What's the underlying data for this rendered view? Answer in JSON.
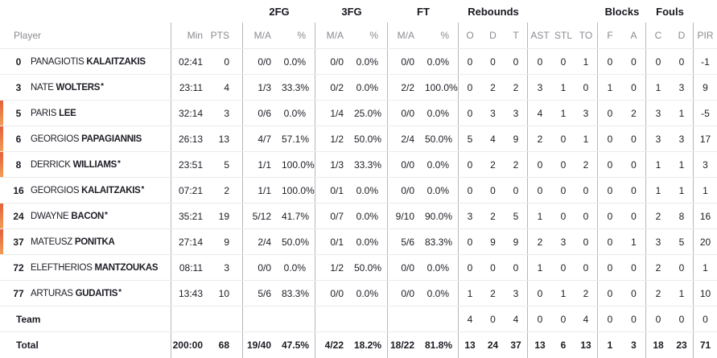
{
  "colors": {
    "text": "#1c1c24",
    "muted_header": "#8a8a92",
    "divider_line": "#b7b7bc",
    "row_line": "#ebebed",
    "oncourt_marker_top": "#e4603c",
    "oncourt_marker_bottom": "#f29c55"
  },
  "table": {
    "star": "*",
    "groups": [
      "2FG",
      "3FG",
      "FT",
      "Rebounds",
      "Blocks",
      "Fouls"
    ],
    "columns": [
      "Player",
      "Min",
      "PTS",
      "M/A",
      "%",
      "M/A",
      "%",
      "M/A",
      "%",
      "O",
      "D",
      "T",
      "AST",
      "STL",
      "TO",
      "F",
      "A",
      "C",
      "D",
      "PIR"
    ],
    "rows": [
      {
        "num": "0",
        "first": "PANAGIOTIS",
        "last": "KALAITZAKIS",
        "starter": false,
        "oncourt": false,
        "min": "02:41",
        "pts": "0",
        "fg2_ma": "0/0",
        "fg2_pct": "0.0%",
        "fg3_ma": "0/0",
        "fg3_pct": "0.0%",
        "ft_ma": "0/0",
        "ft_pct": "0.0%",
        "reb_o": "0",
        "reb_d": "0",
        "reb_t": "0",
        "ast": "0",
        "stl": "0",
        "to": "1",
        "blk_f": "0",
        "blk_a": "0",
        "foul_c": "0",
        "foul_d": "0",
        "pir": "-1"
      },
      {
        "num": "3",
        "first": "NATE",
        "last": "WOLTERS",
        "starter": true,
        "oncourt": false,
        "min": "23:11",
        "pts": "4",
        "fg2_ma": "1/3",
        "fg2_pct": "33.3%",
        "fg3_ma": "0/2",
        "fg3_pct": "0.0%",
        "ft_ma": "2/2",
        "ft_pct": "100.0%",
        "reb_o": "0",
        "reb_d": "2",
        "reb_t": "2",
        "ast": "3",
        "stl": "1",
        "to": "0",
        "blk_f": "1",
        "blk_a": "0",
        "foul_c": "1",
        "foul_d": "3",
        "pir": "9"
      },
      {
        "num": "5",
        "first": "PARIS",
        "last": "LEE",
        "starter": false,
        "oncourt": true,
        "min": "32:14",
        "pts": "3",
        "fg2_ma": "0/6",
        "fg2_pct": "0.0%",
        "fg3_ma": "1/4",
        "fg3_pct": "25.0%",
        "ft_ma": "0/0",
        "ft_pct": "0.0%",
        "reb_o": "0",
        "reb_d": "3",
        "reb_t": "3",
        "ast": "4",
        "stl": "1",
        "to": "3",
        "blk_f": "0",
        "blk_a": "2",
        "foul_c": "3",
        "foul_d": "1",
        "pir": "-5"
      },
      {
        "num": "6",
        "first": "GEORGIOS",
        "last": "PAPAGIANNIS",
        "starter": false,
        "oncourt": true,
        "min": "26:13",
        "pts": "13",
        "fg2_ma": "4/7",
        "fg2_pct": "57.1%",
        "fg3_ma": "1/2",
        "fg3_pct": "50.0%",
        "ft_ma": "2/4",
        "ft_pct": "50.0%",
        "reb_o": "5",
        "reb_d": "4",
        "reb_t": "9",
        "ast": "2",
        "stl": "0",
        "to": "1",
        "blk_f": "0",
        "blk_a": "0",
        "foul_c": "3",
        "foul_d": "3",
        "pir": "17"
      },
      {
        "num": "8",
        "first": "DERRICK",
        "last": "WILLIAMS",
        "starter": true,
        "oncourt": true,
        "min": "23:51",
        "pts": "5",
        "fg2_ma": "1/1",
        "fg2_pct": "100.0%",
        "fg3_ma": "1/3",
        "fg3_pct": "33.3%",
        "ft_ma": "0/0",
        "ft_pct": "0.0%",
        "reb_o": "0",
        "reb_d": "2",
        "reb_t": "2",
        "ast": "0",
        "stl": "0",
        "to": "2",
        "blk_f": "0",
        "blk_a": "0",
        "foul_c": "1",
        "foul_d": "1",
        "pir": "3"
      },
      {
        "num": "16",
        "first": "GEORGIOS",
        "last": "KALAITZAKIS",
        "starter": true,
        "oncourt": false,
        "min": "07:21",
        "pts": "2",
        "fg2_ma": "1/1",
        "fg2_pct": "100.0%",
        "fg3_ma": "0/1",
        "fg3_pct": "0.0%",
        "ft_ma": "0/0",
        "ft_pct": "0.0%",
        "reb_o": "0",
        "reb_d": "0",
        "reb_t": "0",
        "ast": "0",
        "stl": "0",
        "to": "0",
        "blk_f": "0",
        "blk_a": "0",
        "foul_c": "1",
        "foul_d": "1",
        "pir": "1"
      },
      {
        "num": "24",
        "first": "DWAYNE",
        "last": "BACON",
        "starter": true,
        "oncourt": true,
        "min": "35:21",
        "pts": "19",
        "fg2_ma": "5/12",
        "fg2_pct": "41.7%",
        "fg3_ma": "0/7",
        "fg3_pct": "0.0%",
        "ft_ma": "9/10",
        "ft_pct": "90.0%",
        "reb_o": "3",
        "reb_d": "2",
        "reb_t": "5",
        "ast": "1",
        "stl": "0",
        "to": "0",
        "blk_f": "0",
        "blk_a": "0",
        "foul_c": "2",
        "foul_d": "8",
        "pir": "16"
      },
      {
        "num": "37",
        "first": "MATEUSZ",
        "last": "PONITKA",
        "starter": false,
        "oncourt": true,
        "min": "27:14",
        "pts": "9",
        "fg2_ma": "2/4",
        "fg2_pct": "50.0%",
        "fg3_ma": "0/1",
        "fg3_pct": "0.0%",
        "ft_ma": "5/6",
        "ft_pct": "83.3%",
        "reb_o": "0",
        "reb_d": "9",
        "reb_t": "9",
        "ast": "2",
        "stl": "3",
        "to": "0",
        "blk_f": "0",
        "blk_a": "1",
        "foul_c": "3",
        "foul_d": "5",
        "pir": "20"
      },
      {
        "num": "72",
        "first": "ELEFTHERIOS",
        "last": "MANTZOUKAS",
        "starter": false,
        "oncourt": false,
        "min": "08:11",
        "pts": "3",
        "fg2_ma": "0/0",
        "fg2_pct": "0.0%",
        "fg3_ma": "1/2",
        "fg3_pct": "50.0%",
        "ft_ma": "0/0",
        "ft_pct": "0.0%",
        "reb_o": "0",
        "reb_d": "0",
        "reb_t": "0",
        "ast": "1",
        "stl": "0",
        "to": "0",
        "blk_f": "0",
        "blk_a": "0",
        "foul_c": "2",
        "foul_d": "0",
        "pir": "1"
      },
      {
        "num": "77",
        "first": "ARTURAS",
        "last": "GUDAITIS",
        "starter": true,
        "oncourt": false,
        "min": "13:43",
        "pts": "10",
        "fg2_ma": "5/6",
        "fg2_pct": "83.3%",
        "fg3_ma": "0/0",
        "fg3_pct": "0.0%",
        "ft_ma": "0/0",
        "ft_pct": "0.0%",
        "reb_o": "1",
        "reb_d": "2",
        "reb_t": "3",
        "ast": "0",
        "stl": "1",
        "to": "2",
        "blk_f": "0",
        "blk_a": "0",
        "foul_c": "2",
        "foul_d": "1",
        "pir": "10"
      },
      {
        "label": "Team",
        "min": "",
        "pts": "",
        "fg2_ma": "",
        "fg2_pct": "",
        "fg3_ma": "",
        "fg3_pct": "",
        "ft_ma": "",
        "ft_pct": "",
        "reb_o": "4",
        "reb_d": "0",
        "reb_t": "4",
        "ast": "0",
        "stl": "0",
        "to": "4",
        "blk_f": "0",
        "blk_a": "0",
        "foul_c": "0",
        "foul_d": "0",
        "pir": "0"
      },
      {
        "label": "Total",
        "total": true,
        "min": "200:00",
        "pts": "68",
        "fg2_ma": "19/40",
        "fg2_pct": "47.5%",
        "fg3_ma": "4/22",
        "fg3_pct": "18.2%",
        "ft_ma": "18/22",
        "ft_pct": "81.8%",
        "reb_o": "13",
        "reb_d": "24",
        "reb_t": "37",
        "ast": "13",
        "stl": "6",
        "to": "13",
        "blk_f": "1",
        "blk_a": "3",
        "foul_c": "18",
        "foul_d": "23",
        "pir": "71"
      }
    ]
  }
}
